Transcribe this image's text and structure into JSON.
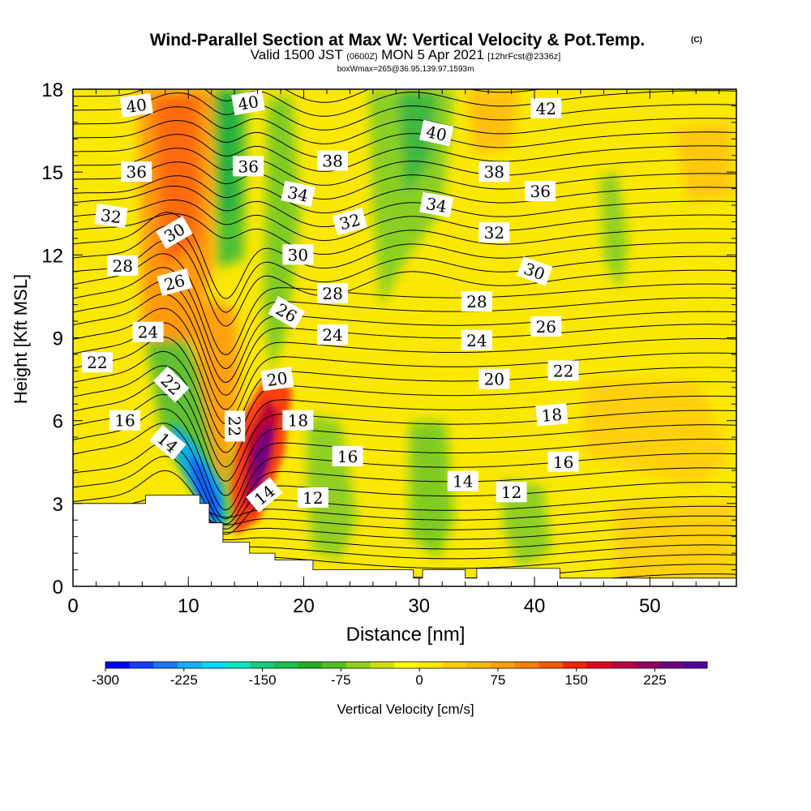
{
  "header": {
    "title": "Wind-Parallel Section at Max W: Vertical Velocity & Pot.Temp.",
    "title_mark": "(C)",
    "subtitle_valid": "Valid 1500 JST",
    "subtitle_utc": "(0600Z)",
    "subtitle_date": "MON 5 Apr 2021",
    "subtitle_fcst": "[12hrFcst@2336z]",
    "subtitle_box": "boxWmax=265@36.95,139.97,1593m"
  },
  "chart_data": {
    "type": "heatmap",
    "title": "Wind-Parallel Section at Max W: Vertical Velocity & Pot.Temp.",
    "xlabel": "Distance [nm]",
    "ylabel": "Height [Kft MSL]",
    "xlim": [
      0,
      57.5
    ],
    "ylim": [
      0,
      18
    ],
    "x_ticks": [
      0,
      10,
      20,
      30,
      40,
      50
    ],
    "y_ticks": [
      0,
      3,
      6,
      9,
      12,
      15,
      18
    ],
    "colorbar": {
      "label": "Vertical Velocity [cm/s]",
      "tick_labels": [
        "-300",
        "-225",
        "-150",
        "-75",
        "0",
        "75",
        "150",
        "225"
      ],
      "range": [
        -300,
        275
      ],
      "colors": [
        "#0000ff",
        "#1040ff",
        "#1878ff",
        "#10b0ff",
        "#00d8ff",
        "#00e8c0",
        "#10d080",
        "#18c050",
        "#20b020",
        "#50c020",
        "#90d010",
        "#d0e000",
        "#ffff00",
        "#ffe800",
        "#ffd000",
        "#ffb800",
        "#ffa000",
        "#ff8000",
        "#ff5800",
        "#ff2000",
        "#e80020",
        "#c00040",
        "#980060",
        "#700080",
        "#5000a0"
      ]
    },
    "theta_contour_labels": [
      {
        "text": "40",
        "x": 5.5,
        "y": 17.4,
        "rot": -8
      },
      {
        "text": "40",
        "x": 15.2,
        "y": 17.5,
        "rot": -10
      },
      {
        "text": "42",
        "x": 41,
        "y": 17.3,
        "rot": 0
      },
      {
        "text": "40",
        "x": 31.5,
        "y": 16.4,
        "rot": 12
      },
      {
        "text": "38",
        "x": 22.5,
        "y": 15.4,
        "rot": 0
      },
      {
        "text": "38",
        "x": 36.5,
        "y": 15.0,
        "rot": 0
      },
      {
        "text": "36",
        "x": 5.5,
        "y": 15.0,
        "rot": 0
      },
      {
        "text": "36",
        "x": 15.2,
        "y": 15.2,
        "rot": 0
      },
      {
        "text": "36",
        "x": 40.5,
        "y": 14.3,
        "rot": 0
      },
      {
        "text": "34",
        "x": 19.5,
        "y": 14.2,
        "rot": 12
      },
      {
        "text": "34",
        "x": 31.5,
        "y": 13.8,
        "rot": 10
      },
      {
        "text": "32",
        "x": 3.3,
        "y": 13.4,
        "rot": 8
      },
      {
        "text": "32",
        "x": 24.0,
        "y": 13.2,
        "rot": -15
      },
      {
        "text": "32",
        "x": 36.5,
        "y": 12.8,
        "rot": 0
      },
      {
        "text": "30",
        "x": 8.8,
        "y": 12.8,
        "rot": -30
      },
      {
        "text": "30",
        "x": 19.5,
        "y": 12.0,
        "rot": 0
      },
      {
        "text": "30",
        "x": 40.0,
        "y": 11.4,
        "rot": 20
      },
      {
        "text": "28",
        "x": 4.3,
        "y": 11.6,
        "rot": 0
      },
      {
        "text": "28",
        "x": 22.5,
        "y": 10.6,
        "rot": 0
      },
      {
        "text": "28",
        "x": 35.0,
        "y": 10.3,
        "rot": 0
      },
      {
        "text": "26",
        "x": 8.8,
        "y": 11.0,
        "rot": -15
      },
      {
        "text": "26",
        "x": 18.5,
        "y": 9.9,
        "rot": 30
      },
      {
        "text": "26",
        "x": 41.0,
        "y": 9.4,
        "rot": 0
      },
      {
        "text": "24",
        "x": 6.5,
        "y": 9.2,
        "rot": 0
      },
      {
        "text": "24",
        "x": 22.5,
        "y": 9.1,
        "rot": 0
      },
      {
        "text": "24",
        "x": 35.0,
        "y": 8.9,
        "rot": 0
      },
      {
        "text": "22",
        "x": 2.1,
        "y": 8.1,
        "rot": 0
      },
      {
        "text": "22",
        "x": 8.5,
        "y": 7.3,
        "rot": 45
      },
      {
        "text": "22",
        "x": 14.0,
        "y": 5.8,
        "rot": 90
      },
      {
        "text": "22",
        "x": 42.5,
        "y": 7.8,
        "rot": 0
      },
      {
        "text": "20",
        "x": 17.7,
        "y": 7.5,
        "rot": -8
      },
      {
        "text": "20",
        "x": 36.5,
        "y": 7.5,
        "rot": 0
      },
      {
        "text": "18",
        "x": 19.5,
        "y": 6.0,
        "rot": 0
      },
      {
        "text": "18",
        "x": 41.5,
        "y": 6.2,
        "rot": -5
      },
      {
        "text": "16",
        "x": 4.5,
        "y": 6.0,
        "rot": 0
      },
      {
        "text": "16",
        "x": 23.8,
        "y": 4.7,
        "rot": 0
      },
      {
        "text": "16",
        "x": 42.5,
        "y": 4.5,
        "rot": 0
      },
      {
        "text": "14",
        "x": 8.2,
        "y": 5.2,
        "rot": 40
      },
      {
        "text": "14",
        "x": 16.6,
        "y": 3.3,
        "rot": -40
      },
      {
        "text": "14",
        "x": 33.8,
        "y": 3.8,
        "rot": 0
      },
      {
        "text": "12",
        "x": 20.8,
        "y": 3.2,
        "rot": 0
      },
      {
        "text": "12",
        "x": 38.0,
        "y": 3.4,
        "rot": 0
      }
    ],
    "terrain_top": [
      {
        "x": 0,
        "y": 3.0
      },
      {
        "x": 6.3,
        "y": 3.0
      },
      {
        "x": 6.3,
        "y": 3.3
      },
      {
        "x": 11.0,
        "y": 3.3
      },
      {
        "x": 11.0,
        "y": 3.0
      },
      {
        "x": 11.8,
        "y": 3.0
      },
      {
        "x": 11.8,
        "y": 2.3
      },
      {
        "x": 13.0,
        "y": 2.3
      },
      {
        "x": 13.0,
        "y": 1.6
      },
      {
        "x": 15.3,
        "y": 1.6
      },
      {
        "x": 15.3,
        "y": 1.2
      },
      {
        "x": 17.5,
        "y": 1.2
      },
      {
        "x": 17.5,
        "y": 0.95
      },
      {
        "x": 20.8,
        "y": 0.95
      },
      {
        "x": 20.8,
        "y": 0.6
      },
      {
        "x": 29.5,
        "y": 0.6
      },
      {
        "x": 29.5,
        "y": 0.3
      },
      {
        "x": 30.3,
        "y": 0.3
      },
      {
        "x": 30.3,
        "y": 0.6
      },
      {
        "x": 34.0,
        "y": 0.6
      },
      {
        "x": 34.0,
        "y": 0.3
      },
      {
        "x": 35.0,
        "y": 0.3
      },
      {
        "x": 35.0,
        "y": 0.65
      },
      {
        "x": 42.2,
        "y": 0.65
      },
      {
        "x": 42.2,
        "y": 0.3
      },
      {
        "x": 57.5,
        "y": 0.3
      },
      {
        "x": 57.5,
        "y": 0
      },
      {
        "x": 0,
        "y": 0
      }
    ]
  }
}
